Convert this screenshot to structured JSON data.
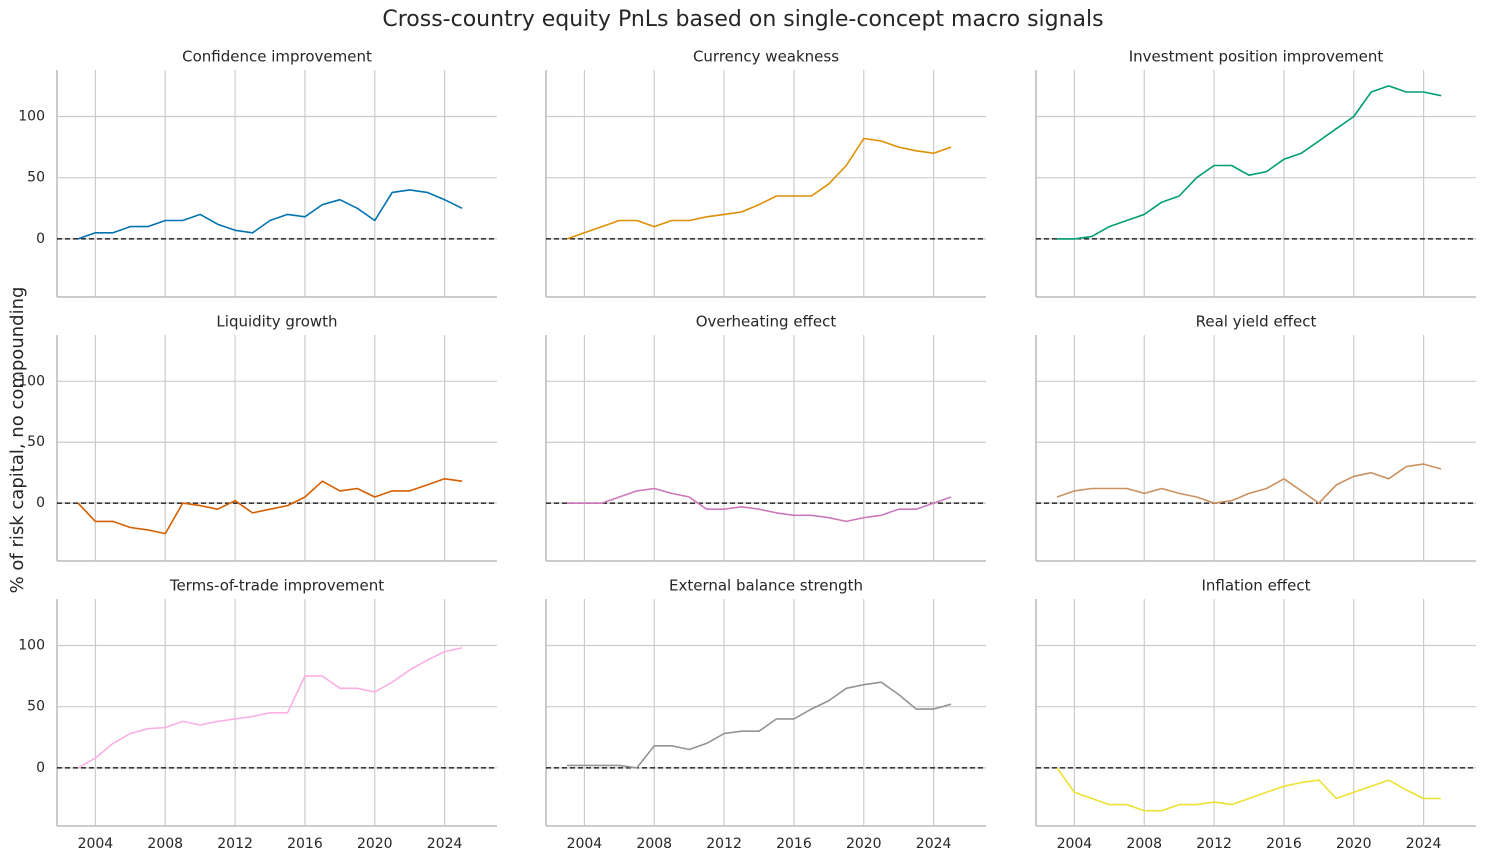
{
  "title": "Cross-country equity PnLs based on single-concept macro signals",
  "y_label": "% of risk capital, no compounding",
  "chart_data": [
    {
      "type": "line",
      "title": "Confidence improvement",
      "x": [
        2003,
        2004,
        2005,
        2006,
        2007,
        2008,
        2009,
        2010,
        2011,
        2012,
        2013,
        2014,
        2015,
        2016,
        2017,
        2018,
        2019,
        2020,
        2021,
        2022,
        2023,
        2024,
        2025
      ],
      "series": [
        {
          "color": "#0173b2",
          "values": [
            0,
            5,
            5,
            10,
            10,
            15,
            15,
            20,
            12,
            7,
            5,
            15,
            20,
            18,
            28,
            32,
            25,
            15,
            38,
            40,
            38,
            32,
            25
          ]
        }
      ],
      "xlim": [
        2001.8,
        2027
      ],
      "ylim": [
        -47.5,
        138
      ],
      "xticks": [
        2004,
        2008,
        2012,
        2016,
        2020,
        2024
      ],
      "yticks": [
        0,
        50,
        100
      ],
      "grid": true,
      "hline": 0
    },
    {
      "type": "line",
      "title": "Currency weakness",
      "x": [
        2003,
        2004,
        2005,
        2006,
        2007,
        2008,
        2009,
        2010,
        2011,
        2012,
        2013,
        2014,
        2015,
        2016,
        2017,
        2018,
        2019,
        2020,
        2021,
        2022,
        2023,
        2024,
        2025
      ],
      "series": [
        {
          "color": "#de8f05",
          "values": [
            0,
            5,
            10,
            15,
            15,
            10,
            15,
            15,
            18,
            20,
            22,
            28,
            35,
            35,
            35,
            45,
            60,
            82,
            80,
            75,
            72,
            70,
            75
          ]
        }
      ],
      "xlim": [
        2001.8,
        2027
      ],
      "ylim": [
        -47.5,
        138
      ],
      "xticks": [
        2004,
        2008,
        2012,
        2016,
        2020,
        2024
      ],
      "yticks": [
        0,
        50,
        100
      ],
      "grid": true,
      "hline": 0
    },
    {
      "type": "line",
      "title": "Investment position improvement",
      "x": [
        2003,
        2004,
        2005,
        2006,
        2007,
        2008,
        2009,
        2010,
        2011,
        2012,
        2013,
        2014,
        2015,
        2016,
        2017,
        2018,
        2019,
        2020,
        2021,
        2022,
        2023,
        2024,
        2025
      ],
      "series": [
        {
          "color": "#029e73",
          "values": [
            0,
            0,
            2,
            10,
            15,
            20,
            30,
            35,
            50,
            60,
            60,
            52,
            55,
            65,
            70,
            80,
            90,
            100,
            120,
            125,
            120,
            120,
            117
          ]
        }
      ],
      "xlim": [
        2001.8,
        2027
      ],
      "ylim": [
        -47.5,
        138
      ],
      "xticks": [
        2004,
        2008,
        2012,
        2016,
        2020,
        2024
      ],
      "yticks": [
        0,
        50,
        100
      ],
      "grid": true,
      "hline": 0
    },
    {
      "type": "line",
      "title": "Liquidity growth",
      "x": [
        2003,
        2004,
        2005,
        2006,
        2007,
        2008,
        2009,
        2010,
        2011,
        2012,
        2013,
        2014,
        2015,
        2016,
        2017,
        2018,
        2019,
        2020,
        2021,
        2022,
        2023,
        2024,
        2025
      ],
      "series": [
        {
          "color": "#d55e00",
          "values": [
            0,
            -15,
            -15,
            -20,
            -22,
            -25,
            0,
            -2,
            -5,
            2,
            -8,
            -5,
            -2,
            5,
            18,
            10,
            12,
            5,
            10,
            10,
            15,
            20,
            18
          ]
        }
      ],
      "xlim": [
        2001.8,
        2027
      ],
      "ylim": [
        -47.5,
        138
      ],
      "xticks": [
        2004,
        2008,
        2012,
        2016,
        2020,
        2024
      ],
      "yticks": [
        0,
        50,
        100
      ],
      "grid": true,
      "hline": 0
    },
    {
      "type": "line",
      "title": "Overheating effect",
      "x": [
        2003,
        2004,
        2005,
        2006,
        2007,
        2008,
        2009,
        2010,
        2011,
        2012,
        2013,
        2014,
        2015,
        2016,
        2017,
        2018,
        2019,
        2020,
        2021,
        2022,
        2023,
        2024,
        2025
      ],
      "series": [
        {
          "color": "#cc78bc",
          "values": [
            0,
            0,
            0,
            5,
            10,
            12,
            8,
            5,
            -5,
            -5,
            -3,
            -5,
            -8,
            -10,
            -10,
            -12,
            -15,
            -12,
            -10,
            -5,
            -5,
            0,
            5
          ]
        }
      ],
      "xlim": [
        2001.8,
        2027
      ],
      "ylim": [
        -47.5,
        138
      ],
      "xticks": [
        2004,
        2008,
        2012,
        2016,
        2020,
        2024
      ],
      "yticks": [
        0,
        50,
        100
      ],
      "grid": true,
      "hline": 0
    },
    {
      "type": "line",
      "title": "Real yield effect",
      "x": [
        2003,
        2004,
        2005,
        2006,
        2007,
        2008,
        2009,
        2010,
        2011,
        2012,
        2013,
        2014,
        2015,
        2016,
        2017,
        2018,
        2019,
        2020,
        2021,
        2022,
        2023,
        2024,
        2025
      ],
      "series": [
        {
          "color": "#ca9161",
          "values": [
            5,
            10,
            12,
            12,
            12,
            8,
            12,
            8,
            5,
            0,
            2,
            8,
            12,
            20,
            10,
            0,
            15,
            22,
            25,
            20,
            30,
            32,
            28
          ]
        }
      ],
      "xlim": [
        2001.8,
        2027
      ],
      "ylim": [
        -47.5,
        138
      ],
      "xticks": [
        2004,
        2008,
        2012,
        2016,
        2020,
        2024
      ],
      "yticks": [
        0,
        50,
        100
      ],
      "grid": true,
      "hline": 0
    },
    {
      "type": "line",
      "title": "Terms-of-trade improvement",
      "x": [
        2003,
        2004,
        2005,
        2006,
        2007,
        2008,
        2009,
        2010,
        2011,
        2012,
        2013,
        2014,
        2015,
        2016,
        2017,
        2018,
        2019,
        2020,
        2021,
        2022,
        2023,
        2024,
        2025
      ],
      "series": [
        {
          "color": "#fbafe4",
          "values": [
            0,
            8,
            20,
            28,
            32,
            33,
            38,
            35,
            38,
            40,
            42,
            45,
            45,
            75,
            75,
            65,
            65,
            62,
            70,
            80,
            88,
            95,
            98
          ]
        }
      ],
      "xlim": [
        2001.8,
        2027
      ],
      "ylim": [
        -47.5,
        138
      ],
      "xticks": [
        2004,
        2008,
        2012,
        2016,
        2020,
        2024
      ],
      "yticks": [
        0,
        50,
        100
      ],
      "grid": true,
      "hline": 0
    },
    {
      "type": "line",
      "title": "External balance strength",
      "x": [
        2003,
        2004,
        2005,
        2006,
        2007,
        2008,
        2009,
        2010,
        2011,
        2012,
        2013,
        2014,
        2015,
        2016,
        2017,
        2018,
        2019,
        2020,
        2021,
        2022,
        2023,
        2024,
        2025
      ],
      "series": [
        {
          "color": "#949494",
          "values": [
            2,
            2,
            2,
            2,
            0,
            18,
            18,
            15,
            20,
            28,
            30,
            30,
            40,
            40,
            48,
            55,
            65,
            68,
            70,
            60,
            48,
            48,
            52
          ]
        }
      ],
      "xlim": [
        2001.8,
        2027
      ],
      "ylim": [
        -47.5,
        138
      ],
      "xticks": [
        2004,
        2008,
        2012,
        2016,
        2020,
        2024
      ],
      "yticks": [
        0,
        50,
        100
      ],
      "grid": true,
      "hline": 0
    },
    {
      "type": "line",
      "title": "Inflation effect",
      "x": [
        2003,
        2004,
        2005,
        2006,
        2007,
        2008,
        2009,
        2010,
        2011,
        2012,
        2013,
        2014,
        2015,
        2016,
        2017,
        2018,
        2019,
        2020,
        2021,
        2022,
        2023,
        2024,
        2025
      ],
      "series": [
        {
          "color": "#ece133",
          "values": [
            0,
            -20,
            -25,
            -30,
            -30,
            -35,
            -35,
            -30,
            -30,
            -28,
            -30,
            -25,
            -20,
            -15,
            -12,
            -10,
            -25,
            -20,
            -15,
            -10,
            -18,
            -25,
            -25
          ]
        }
      ],
      "xlim": [
        2001.8,
        2027
      ],
      "ylim": [
        -47.5,
        138
      ],
      "xticks": [
        2004,
        2008,
        2012,
        2016,
        2020,
        2024
      ],
      "yticks": [
        0,
        50,
        100
      ],
      "grid": true,
      "hline": 0
    }
  ]
}
